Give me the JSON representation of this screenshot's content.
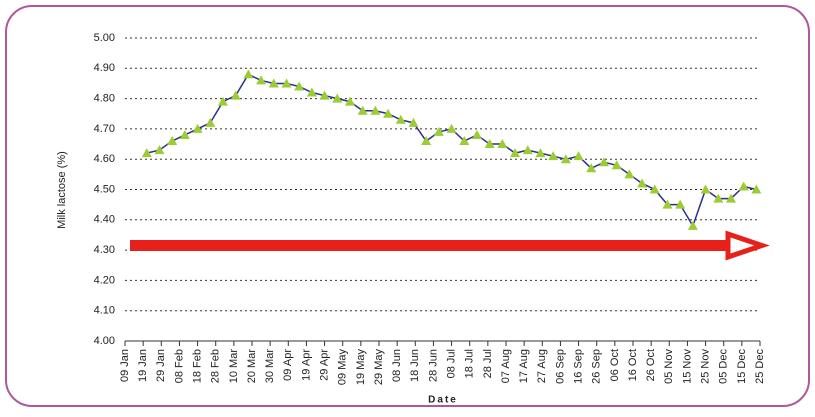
{
  "chart_data": {
    "type": "line",
    "y_label": "Milk lactose (%)",
    "x_label": "Date",
    "x": [
      21,
      28,
      35,
      42,
      49,
      56,
      63,
      70,
      77,
      84,
      91,
      98,
      105,
      112,
      119,
      126,
      133,
      140,
      147,
      154,
      161,
      168,
      175,
      182,
      189,
      196,
      203,
      210,
      217,
      224,
      231,
      238,
      245,
      252,
      259,
      266,
      273,
      280,
      287,
      294,
      301,
      308,
      315,
      322,
      329,
      336,
      343,
      350,
      357
    ],
    "series": [
      {
        "name": "Milk lactose",
        "color": "#2b2f8f",
        "marker_color": "#9acd32",
        "values": [
          4.62,
          4.63,
          4.66,
          4.68,
          4.7,
          4.72,
          4.79,
          4.81,
          4.88,
          4.86,
          4.85,
          4.85,
          4.84,
          4.82,
          4.81,
          4.8,
          4.79,
          4.76,
          4.76,
          4.75,
          4.73,
          4.72,
          4.66,
          4.69,
          4.7,
          4.66,
          4.68,
          4.65,
          4.65,
          4.62,
          4.63,
          4.62,
          4.61,
          4.6,
          4.61,
          4.57,
          4.59,
          4.58,
          4.55,
          4.52,
          4.5,
          4.45,
          4.45,
          4.38,
          4.5,
          4.47,
          4.47,
          4.51,
          4.5
        ]
      }
    ],
    "xlim": [
      9,
      359
    ],
    "xticks": [
      {
        "value": 9,
        "label": "09 Jan"
      },
      {
        "value": 19,
        "label": "19 Jan"
      },
      {
        "value": 29,
        "label": "29 Jan"
      },
      {
        "value": 39,
        "label": "08 Feb"
      },
      {
        "value": 49,
        "label": "18 Feb"
      },
      {
        "value": 59,
        "label": "28 Feb"
      },
      {
        "value": 69,
        "label": "10 Mar"
      },
      {
        "value": 79,
        "label": "20 Mar"
      },
      {
        "value": 89,
        "label": "30 Mar"
      },
      {
        "value": 99,
        "label": "09 Apr"
      },
      {
        "value": 109,
        "label": "19 Apr"
      },
      {
        "value": 119,
        "label": "29 Apr"
      },
      {
        "value": 129,
        "label": "09 May"
      },
      {
        "value": 139,
        "label": "19 May"
      },
      {
        "value": 149,
        "label": "29 May"
      },
      {
        "value": 159,
        "label": "08 Jun"
      },
      {
        "value": 169,
        "label": "18 Jun"
      },
      {
        "value": 179,
        "label": "28 Jun"
      },
      {
        "value": 189,
        "label": "08 Jul"
      },
      {
        "value": 199,
        "label": "18 Jul"
      },
      {
        "value": 209,
        "label": "28 Jul"
      },
      {
        "value": 219,
        "label": "07 Aug"
      },
      {
        "value": 229,
        "label": "17 Aug"
      },
      {
        "value": 239,
        "label": "27 Aug"
      },
      {
        "value": 249,
        "label": "06 Sep"
      },
      {
        "value": 259,
        "label": "16 Sep"
      },
      {
        "value": 269,
        "label": "26 Sep"
      },
      {
        "value": 279,
        "label": "06 Oct"
      },
      {
        "value": 289,
        "label": "16 Oct"
      },
      {
        "value": 299,
        "label": "26 Oct"
      },
      {
        "value": 309,
        "label": "05 Nov"
      },
      {
        "value": 319,
        "label": "15 Nov"
      },
      {
        "value": 329,
        "label": "25 Nov"
      },
      {
        "value": 339,
        "label": "05 Dec"
      },
      {
        "value": 349,
        "label": "15 Dec"
      },
      {
        "value": 359,
        "label": "25 Dec"
      }
    ],
    "ylim": [
      4.0,
      5.0
    ],
    "yticks": [
      {
        "value": 4.0,
        "label": "4.00"
      },
      {
        "value": 4.1,
        "label": "4.10"
      },
      {
        "value": 4.2,
        "label": "4.20"
      },
      {
        "value": 4.3,
        "label": "4.30"
      },
      {
        "value": 4.4,
        "label": "4.40"
      },
      {
        "value": 4.5,
        "label": "4.50"
      },
      {
        "value": 4.6,
        "label": "4.60"
      },
      {
        "value": 4.7,
        "label": "4.70"
      },
      {
        "value": 4.8,
        "label": "4.80"
      },
      {
        "value": 4.9,
        "label": "4.90"
      },
      {
        "value": 5.0,
        "label": "5.00"
      }
    ],
    "grid": true
  }
}
